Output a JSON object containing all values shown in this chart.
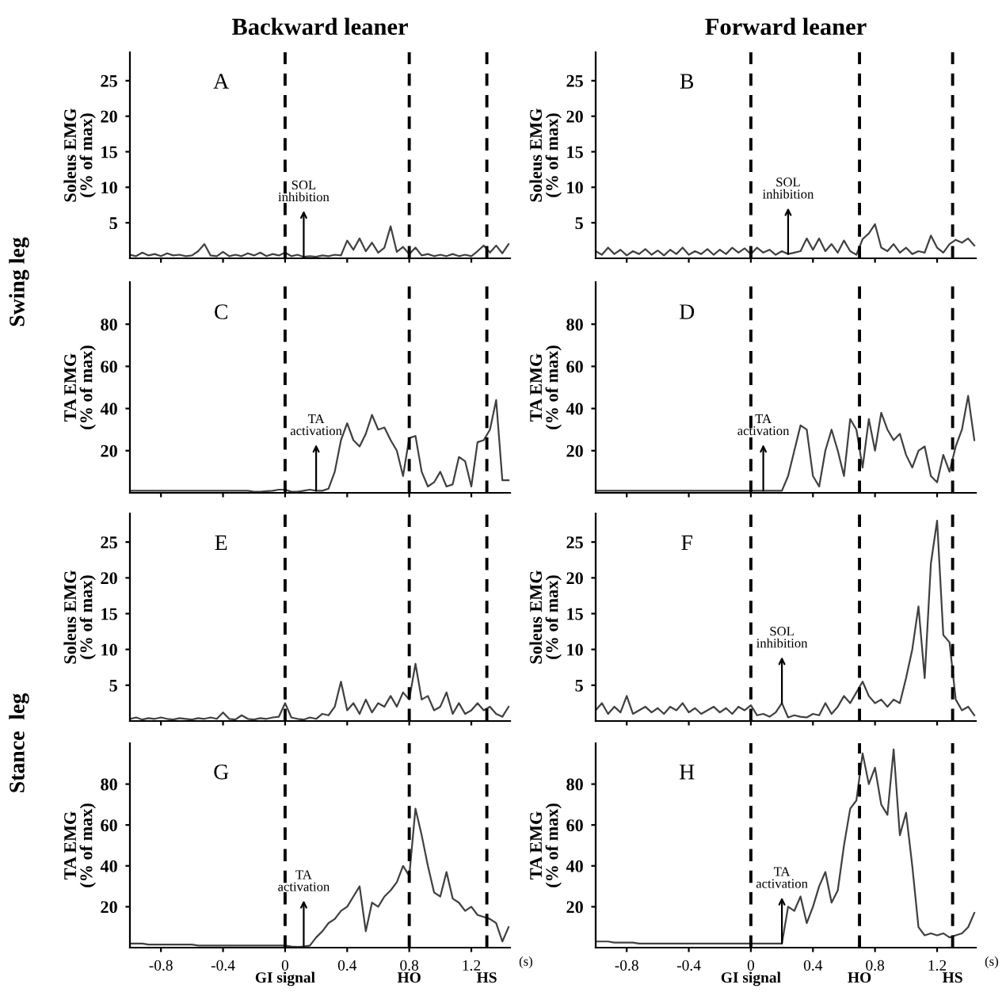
{
  "chart_data": [
    {
      "type": "line",
      "title": "Backward leaner",
      "ylabel": "Soleus EMG\n(% of max)",
      "annotations": [
        "A",
        {
          "text": "SOL\ninhibition",
          "x": 0.12,
          "y": 0.2
        }
      ],
      "color": "#404040",
      "xlim": [
        -1.0,
        1.45
      ],
      "xticks": [
        -0.8,
        -0.4,
        0,
        0.4,
        0.8,
        1.2
      ],
      "ylim": [
        0,
        29
      ],
      "yticks": [
        5,
        10,
        15,
        20,
        25
      ],
      "tick_labels": "y",
      "ref_lines": [
        {
          "axis": "x",
          "value": 0,
          "color": "#000000",
          "line_style": "dashed"
        },
        {
          "axis": "x",
          "value": 0.8,
          "color": "#000000",
          "line_style": "dashed"
        },
        {
          "axis": "x",
          "value": 1.3,
          "color": "#000000",
          "line_style": "dashed"
        }
      ],
      "x": [
        -1.0,
        -0.96,
        -0.92,
        -0.88,
        -0.84,
        -0.8,
        -0.76,
        -0.72,
        -0.68,
        -0.64,
        -0.6,
        -0.56,
        -0.52,
        -0.48,
        -0.44,
        -0.4,
        -0.36,
        -0.32,
        -0.28,
        -0.24,
        -0.2,
        -0.16,
        -0.12,
        -0.08,
        -0.04,
        0,
        0.04,
        0.08,
        0.12,
        0.16,
        0.2,
        0.24,
        0.28,
        0.32,
        0.36,
        0.4,
        0.44,
        0.48,
        0.52,
        0.56,
        0.6,
        0.64,
        0.68,
        0.72,
        0.76,
        0.8,
        0.84,
        0.88,
        0.92,
        0.96,
        1,
        1.04,
        1.08,
        1.12,
        1.16,
        1.2,
        1.24,
        1.28,
        1.32,
        1.36,
        1.4,
        1.44
      ],
      "values": [
        0.5,
        0.3,
        0.8,
        0.4,
        0.6,
        0.3,
        0.7,
        0.4,
        0.5,
        0.3,
        0.4,
        1.0,
        2.0,
        0.4,
        0.3,
        0.9,
        0.3,
        0.5,
        0.3,
        0.7,
        0.4,
        0.8,
        0.3,
        0.6,
        0.4,
        0.8,
        0.3,
        0.5,
        0.2,
        0.3,
        0.2,
        0.4,
        0.3,
        0.5,
        0.4,
        2.5,
        1.2,
        2.8,
        1.0,
        2.2,
        0.8,
        1.5,
        4.5,
        0.9,
        1.6,
        0.6,
        1.5,
        0.4,
        0.6,
        0.3,
        0.5,
        0.3,
        0.6,
        0.3,
        0.5,
        0.3,
        1.0,
        1.8,
        0.8,
        1.8,
        0.7,
        2.0
      ]
    },
    {
      "type": "line",
      "title": "Forward leaner",
      "ylabel": "Soleus EMG\n(% of max)",
      "annotations": [
        "B",
        {
          "text": "SOL\ninhibition",
          "x": 0.24,
          "y": 0.6
        }
      ],
      "color": "#404040",
      "xlim": [
        -1.0,
        1.45
      ],
      "xticks": [
        -0.8,
        -0.4,
        0,
        0.4,
        0.8,
        1.2
      ],
      "ylim": [
        0,
        29
      ],
      "yticks": [
        5,
        10,
        15,
        20,
        25
      ],
      "tick_labels": "y",
      "ref_lines": [
        {
          "axis": "x",
          "value": 0,
          "color": "#000000",
          "line_style": "dashed"
        },
        {
          "axis": "x",
          "value": 0.7,
          "color": "#000000",
          "line_style": "dashed"
        },
        {
          "axis": "x",
          "value": 1.3,
          "color": "#000000",
          "line_style": "dashed"
        }
      ],
      "x": [
        -1.0,
        -0.96,
        -0.92,
        -0.88,
        -0.84,
        -0.8,
        -0.76,
        -0.72,
        -0.68,
        -0.64,
        -0.6,
        -0.56,
        -0.52,
        -0.48,
        -0.44,
        -0.4,
        -0.36,
        -0.32,
        -0.28,
        -0.24,
        -0.2,
        -0.16,
        -0.12,
        -0.08,
        -0.04,
        0,
        0.04,
        0.08,
        0.12,
        0.16,
        0.2,
        0.24,
        0.28,
        0.32,
        0.36,
        0.4,
        0.44,
        0.48,
        0.52,
        0.56,
        0.6,
        0.64,
        0.68,
        0.72,
        0.76,
        0.8,
        0.84,
        0.88,
        0.92,
        0.96,
        1,
        1.04,
        1.08,
        1.12,
        1.16,
        1.2,
        1.24,
        1.28,
        1.32,
        1.36,
        1.4,
        1.44
      ],
      "values": [
        1.0,
        0.5,
        1.5,
        0.6,
        1.2,
        0.4,
        1.0,
        0.6,
        1.3,
        0.5,
        1.1,
        0.4,
        1.2,
        0.6,
        1.5,
        0.5,
        1.0,
        0.6,
        1.3,
        0.5,
        1.2,
        0.6,
        1.5,
        0.8,
        1.4,
        0.6,
        1.5,
        0.8,
        1.2,
        0.5,
        1.0,
        0.6,
        0.8,
        1.0,
        2.8,
        1.2,
        2.8,
        1.0,
        2.0,
        0.8,
        2.5,
        1.0,
        0.5,
        2.7,
        3.5,
        4.8,
        1.5,
        1.0,
        2.0,
        0.8,
        1.5,
        0.6,
        1.0,
        0.8,
        3.2,
        1.5,
        0.8,
        2.0,
        2.6,
        2.2,
        2.8,
        1.8
      ]
    },
    {
      "type": "line",
      "ylabel": "TA EMG\n(% of max)",
      "annotations": [
        "C",
        "Swing leg",
        {
          "text": "TA\nactivation",
          "x": 0.2,
          "y": 1
        }
      ],
      "color": "#404040",
      "xlim": [
        -1.0,
        1.45
      ],
      "xticks": [
        -0.8,
        -0.4,
        0,
        0.4,
        0.8,
        1.2
      ],
      "ylim": [
        0,
        100
      ],
      "yticks": [
        20,
        40,
        60,
        80
      ],
      "tick_labels": "y",
      "ref_lines": [
        {
          "axis": "x",
          "value": 0,
          "color": "#000000",
          "line_style": "dashed"
        },
        {
          "axis": "x",
          "value": 0.8,
          "color": "#000000",
          "line_style": "dashed"
        },
        {
          "axis": "x",
          "value": 1.3,
          "color": "#000000",
          "line_style": "dashed"
        }
      ],
      "x": [
        -1.0,
        -0.96,
        -0.92,
        -0.88,
        -0.84,
        -0.8,
        -0.76,
        -0.72,
        -0.68,
        -0.64,
        -0.6,
        -0.56,
        -0.52,
        -0.48,
        -0.44,
        -0.4,
        -0.36,
        -0.32,
        -0.28,
        -0.24,
        -0.2,
        -0.16,
        -0.12,
        -0.08,
        -0.04,
        0,
        0.04,
        0.08,
        0.12,
        0.16,
        0.2,
        0.24,
        0.28,
        0.32,
        0.36,
        0.4,
        0.44,
        0.48,
        0.52,
        0.56,
        0.6,
        0.64,
        0.68,
        0.72,
        0.76,
        0.8,
        0.84,
        0.88,
        0.92,
        0.96,
        1,
        1.04,
        1.08,
        1.12,
        1.16,
        1.2,
        1.24,
        1.28,
        1.32,
        1.36,
        1.4,
        1.44
      ],
      "values": [
        1,
        1,
        1,
        1,
        1,
        1,
        1,
        1,
        1,
        1,
        1,
        1,
        1,
        1,
        1,
        1,
        1,
        1,
        1,
        1,
        0.5,
        0.5,
        0.8,
        1,
        1.5,
        1.5,
        0.5,
        0.5,
        1,
        1.5,
        1,
        1,
        2,
        10,
        25,
        33,
        25,
        22,
        28,
        37,
        30,
        31,
        25,
        20,
        8,
        26,
        27,
        10,
        3,
        5,
        10,
        3,
        4,
        17,
        15,
        3,
        24,
        25,
        30,
        44,
        6,
        6
      ]
    },
    {
      "type": "line",
      "ylabel": "TA EMG\n(% of max)",
      "annotations": [
        "D",
        {
          "text": "TA\nactivation",
          "x": 0.08,
          "y": 1
        }
      ],
      "color": "#404040",
      "xlim": [
        -1.0,
        1.45
      ],
      "xticks": [
        -0.8,
        -0.4,
        0,
        0.4,
        0.8,
        1.2
      ],
      "ylim": [
        0,
        100
      ],
      "yticks": [
        20,
        40,
        60,
        80
      ],
      "tick_labels": "y",
      "ref_lines": [
        {
          "axis": "x",
          "value": 0,
          "color": "#000000",
          "line_style": "dashed"
        },
        {
          "axis": "x",
          "value": 0.7,
          "color": "#000000",
          "line_style": "dashed"
        },
        {
          "axis": "x",
          "value": 1.3,
          "color": "#000000",
          "line_style": "dashed"
        }
      ],
      "x": [
        -1.0,
        -0.96,
        -0.92,
        -0.88,
        -0.84,
        -0.8,
        -0.76,
        -0.72,
        -0.68,
        -0.64,
        -0.6,
        -0.56,
        -0.52,
        -0.48,
        -0.44,
        -0.4,
        -0.36,
        -0.32,
        -0.28,
        -0.24,
        -0.2,
        -0.16,
        -0.12,
        -0.08,
        -0.04,
        0,
        0.04,
        0.08,
        0.12,
        0.16,
        0.2,
        0.24,
        0.28,
        0.32,
        0.36,
        0.4,
        0.44,
        0.48,
        0.52,
        0.56,
        0.6,
        0.64,
        0.68,
        0.72,
        0.76,
        0.8,
        0.84,
        0.88,
        0.92,
        0.96,
        1,
        1.04,
        1.08,
        1.12,
        1.16,
        1.2,
        1.24,
        1.28,
        1.32,
        1.36,
        1.4,
        1.44
      ],
      "values": [
        1,
        1,
        1,
        1,
        1,
        1,
        1,
        1,
        1,
        1,
        1,
        1,
        1,
        1,
        1,
        1,
        1,
        1,
        1,
        1,
        1,
        1,
        1,
        1,
        1,
        1,
        1,
        1,
        1,
        1,
        1,
        8,
        20,
        32,
        30,
        8,
        3,
        20,
        30,
        20,
        8,
        35,
        30,
        12,
        35,
        20,
        38,
        30,
        25,
        28,
        18,
        12,
        20,
        22,
        8,
        5,
        18,
        10,
        22,
        30,
        46,
        25
      ]
    },
    {
      "type": "line",
      "ylabel": "Soleus EMG\n(% of max)",
      "annotations": [
        "E"
      ],
      "color": "#404040",
      "xlim": [
        -1.0,
        1.45
      ],
      "xticks": [
        -0.8,
        -0.4,
        0,
        0.4,
        0.8,
        1.2
      ],
      "ylim": [
        0,
        29
      ],
      "yticks": [
        5,
        10,
        15,
        20,
        25
      ],
      "tick_labels": "y",
      "ref_lines": [
        {
          "axis": "x",
          "value": 0,
          "color": "#000000",
          "line_style": "dashed"
        },
        {
          "axis": "x",
          "value": 0.8,
          "color": "#000000",
          "line_style": "dashed"
        },
        {
          "axis": "x",
          "value": 1.3,
          "color": "#000000",
          "line_style": "dashed"
        }
      ],
      "x": [
        -1.0,
        -0.96,
        -0.92,
        -0.88,
        -0.84,
        -0.8,
        -0.76,
        -0.72,
        -0.68,
        -0.64,
        -0.6,
        -0.56,
        -0.52,
        -0.48,
        -0.44,
        -0.4,
        -0.36,
        -0.32,
        -0.28,
        -0.24,
        -0.2,
        -0.16,
        -0.12,
        -0.08,
        -0.04,
        0,
        0.04,
        0.08,
        0.12,
        0.16,
        0.2,
        0.24,
        0.28,
        0.32,
        0.36,
        0.4,
        0.44,
        0.48,
        0.52,
        0.56,
        0.6,
        0.64,
        0.68,
        0.72,
        0.76,
        0.8,
        0.84,
        0.88,
        0.92,
        0.96,
        1,
        1.04,
        1.08,
        1.12,
        1.16,
        1.2,
        1.24,
        1.28,
        1.32,
        1.36,
        1.4,
        1.44
      ],
      "values": [
        0.3,
        0.5,
        0.2,
        0.4,
        0.3,
        0.5,
        0.3,
        0.2,
        0.4,
        0.3,
        0.2,
        0.4,
        0.3,
        0.5,
        0.3,
        1.2,
        0.3,
        0.2,
        0.8,
        0.3,
        0.2,
        0.4,
        0.3,
        0.5,
        0.6,
        2.5,
        0.5,
        0.3,
        0.2,
        0.5,
        0.3,
        1.0,
        0.8,
        2.0,
        5.5,
        1.5,
        2.5,
        1.0,
        3.0,
        1.2,
        2.5,
        2.0,
        3.5,
        2.0,
        4.0,
        3.0,
        8.0,
        3.0,
        3.5,
        1.5,
        2.0,
        4.0,
        1.0,
        2.5,
        1.0,
        1.5,
        2.5,
        1.5,
        2.0,
        1.0,
        0.6,
        2.0
      ]
    },
    {
      "type": "line",
      "ylabel": "Soleus EMG\n(% of max)",
      "annotations": [
        "F",
        {
          "text": "SOL\ninhibition",
          "x": 0.2,
          "y": 2.5
        }
      ],
      "color": "#404040",
      "xlim": [
        -1.0,
        1.45
      ],
      "xticks": [
        -0.8,
        -0.4,
        0,
        0.4,
        0.8,
        1.2
      ],
      "ylim": [
        0,
        29
      ],
      "yticks": [
        5,
        10,
        15,
        20,
        25
      ],
      "tick_labels": "y",
      "ref_lines": [
        {
          "axis": "x",
          "value": 0,
          "color": "#000000",
          "line_style": "dashed"
        },
        {
          "axis": "x",
          "value": 0.7,
          "color": "#000000",
          "line_style": "dashed"
        },
        {
          "axis": "x",
          "value": 1.3,
          "color": "#000000",
          "line_style": "dashed"
        }
      ],
      "x": [
        -1.0,
        -0.96,
        -0.92,
        -0.88,
        -0.84,
        -0.8,
        -0.76,
        -0.72,
        -0.68,
        -0.64,
        -0.6,
        -0.56,
        -0.52,
        -0.48,
        -0.44,
        -0.4,
        -0.36,
        -0.32,
        -0.28,
        -0.24,
        -0.2,
        -0.16,
        -0.12,
        -0.08,
        -0.04,
        0,
        0.04,
        0.08,
        0.12,
        0.16,
        0.2,
        0.24,
        0.28,
        0.32,
        0.36,
        0.4,
        0.44,
        0.48,
        0.52,
        0.56,
        0.6,
        0.64,
        0.68,
        0.72,
        0.76,
        0.8,
        0.84,
        0.88,
        0.92,
        0.96,
        1,
        1.04,
        1.08,
        1.12,
        1.16,
        1.2,
        1.24,
        1.28,
        1.32,
        1.36,
        1.4,
        1.44
      ],
      "values": [
        1.5,
        2.5,
        1.0,
        2.0,
        1.2,
        3.5,
        1.0,
        1.5,
        2.0,
        1.2,
        1.8,
        1.0,
        2.0,
        1.5,
        2.5,
        1.2,
        1.8,
        1.0,
        1.5,
        2.0,
        1.2,
        1.8,
        1.0,
        2.0,
        1.5,
        2.2,
        0.8,
        1.0,
        0.6,
        1.2,
        2.5,
        0.5,
        0.8,
        0.6,
        0.5,
        1.0,
        0.8,
        2.5,
        1.0,
        2.0,
        3.5,
        2.5,
        4.0,
        5.5,
        3.5,
        2.5,
        3.0,
        2.0,
        3.0,
        2.5,
        6.0,
        10.0,
        16.0,
        6.0,
        22.0,
        28.0,
        12.0,
        11.0,
        3.0,
        1.5,
        2.0,
        0.8
      ]
    },
    {
      "type": "line",
      "xlabel": "(s)",
      "ylabel": "TA EMG\n(% of max)",
      "annotations": [
        "G",
        "Stance  leg",
        {
          "text": "TA\nactivation",
          "x": 0.12,
          "y": 0.5
        }
      ],
      "color": "#404040",
      "xlim": [
        -1.0,
        1.45
      ],
      "xticks": [
        -0.8,
        -0.4,
        0,
        0.4,
        0.8,
        1.2
      ],
      "ylim": [
        0,
        100
      ],
      "yticks": [
        20,
        40,
        60,
        80
      ],
      "ref_lines": [
        {
          "axis": "x",
          "value": 0,
          "label": "GI signal",
          "color": "#000000",
          "line_style": "dashed"
        },
        {
          "axis": "x",
          "value": 0.8,
          "label": "HO",
          "color": "#000000",
          "line_style": "dashed"
        },
        {
          "axis": "x",
          "value": 1.3,
          "label": "HS",
          "color": "#000000",
          "line_style": "dashed"
        }
      ],
      "x": [
        -1.0,
        -0.96,
        -0.92,
        -0.88,
        -0.84,
        -0.8,
        -0.76,
        -0.72,
        -0.68,
        -0.64,
        -0.6,
        -0.56,
        -0.52,
        -0.48,
        -0.44,
        -0.4,
        -0.36,
        -0.32,
        -0.28,
        -0.24,
        -0.2,
        -0.16,
        -0.12,
        -0.08,
        -0.04,
        0,
        0.04,
        0.08,
        0.12,
        0.16,
        0.2,
        0.24,
        0.28,
        0.32,
        0.36,
        0.4,
        0.44,
        0.48,
        0.52,
        0.56,
        0.6,
        0.64,
        0.68,
        0.72,
        0.76,
        0.8,
        0.84,
        0.88,
        0.92,
        0.96,
        1,
        1.04,
        1.08,
        1.12,
        1.16,
        1.2,
        1.24,
        1.28,
        1.32,
        1.36,
        1.4,
        1.44
      ],
      "values": [
        2,
        2,
        2,
        1.5,
        1.5,
        1.5,
        1.5,
        1.5,
        1.5,
        1.5,
        1.5,
        1,
        1,
        1,
        1,
        1,
        1,
        1,
        1,
        1,
        1,
        1,
        1,
        1,
        1,
        1,
        0.5,
        0.3,
        0.5,
        1,
        5,
        8,
        12,
        14,
        18,
        20,
        25,
        30,
        8,
        22,
        20,
        25,
        28,
        32,
        40,
        35,
        68,
        55,
        40,
        27,
        25,
        37,
        24,
        22,
        18,
        20,
        16,
        15,
        14,
        12,
        3,
        10
      ]
    },
    {
      "type": "line",
      "xlabel": "(s)",
      "ylabel": "TA EMG\n(% of max)",
      "annotations": [
        "H",
        {
          "text": "TA\nactivation",
          "x": 0.2,
          "y": 2
        }
      ],
      "color": "#404040",
      "xlim": [
        -1.0,
        1.45
      ],
      "xticks": [
        -0.8,
        -0.4,
        0,
        0.4,
        0.8,
        1.2
      ],
      "ylim": [
        0,
        100
      ],
      "yticks": [
        20,
        40,
        60,
        80
      ],
      "ref_lines": [
        {
          "axis": "x",
          "value": 0,
          "label": "GI signal",
          "color": "#000000",
          "line_style": "dashed"
        },
        {
          "axis": "x",
          "value": 0.7,
          "label": "HO",
          "color": "#000000",
          "line_style": "dashed"
        },
        {
          "axis": "x",
          "value": 1.3,
          "label": "HS",
          "color": "#000000",
          "line_style": "dashed"
        }
      ],
      "x": [
        -1.0,
        -0.96,
        -0.92,
        -0.88,
        -0.84,
        -0.8,
        -0.76,
        -0.72,
        -0.68,
        -0.64,
        -0.6,
        -0.56,
        -0.52,
        -0.48,
        -0.44,
        -0.4,
        -0.36,
        -0.32,
        -0.28,
        -0.24,
        -0.2,
        -0.16,
        -0.12,
        -0.08,
        -0.04,
        0,
        0.04,
        0.08,
        0.12,
        0.16,
        0.2,
        0.24,
        0.28,
        0.32,
        0.36,
        0.4,
        0.44,
        0.48,
        0.52,
        0.56,
        0.6,
        0.64,
        0.68,
        0.72,
        0.76,
        0.8,
        0.84,
        0.88,
        0.92,
        0.96,
        1,
        1.04,
        1.08,
        1.12,
        1.16,
        1.2,
        1.24,
        1.28,
        1.32,
        1.36,
        1.4,
        1.44
      ],
      "values": [
        3,
        3,
        3,
        2.5,
        2.5,
        2.5,
        2.5,
        2,
        2,
        2,
        2,
        2,
        2,
        2,
        2,
        2,
        2,
        2,
        2,
        2,
        2,
        2,
        2,
        2,
        2,
        2,
        2,
        2,
        2,
        2,
        2,
        20,
        18,
        25,
        12,
        20,
        30,
        37,
        22,
        28,
        50,
        68,
        72,
        95,
        80,
        88,
        70,
        65,
        97,
        55,
        66,
        40,
        10,
        6,
        7,
        6,
        7,
        5,
        6,
        7,
        10,
        17
      ]
    }
  ]
}
